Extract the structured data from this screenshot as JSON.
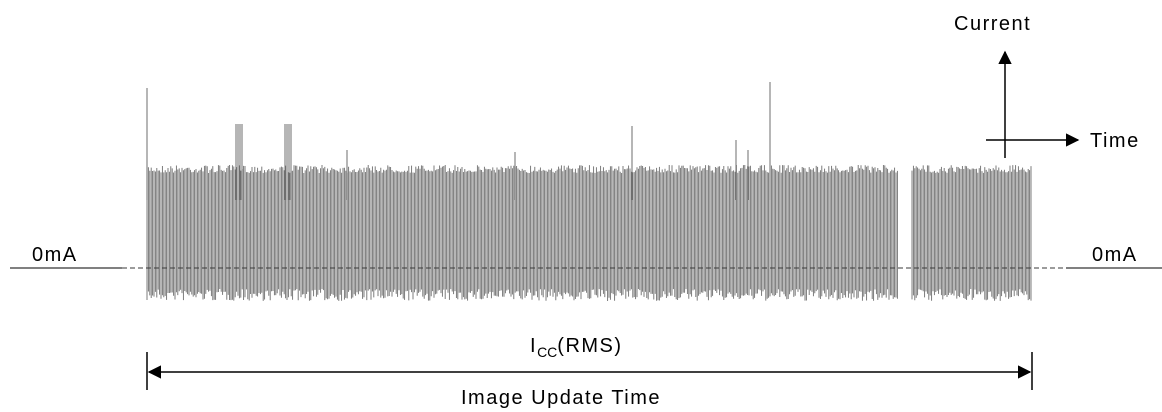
{
  "diagram": {
    "axis_labels": {
      "current": "Current",
      "time": "Time"
    },
    "left_zero_label": "0mA",
    "right_zero_label": "0mA",
    "icc_label": {
      "main": "I",
      "subscript": "CC",
      "suffix": "(RMS)"
    },
    "update_time_label": "Image Update Time",
    "colors": {
      "waveform": "#6e6e6e",
      "lines": "#000000",
      "dashed_baseline": "#555555"
    }
  }
}
